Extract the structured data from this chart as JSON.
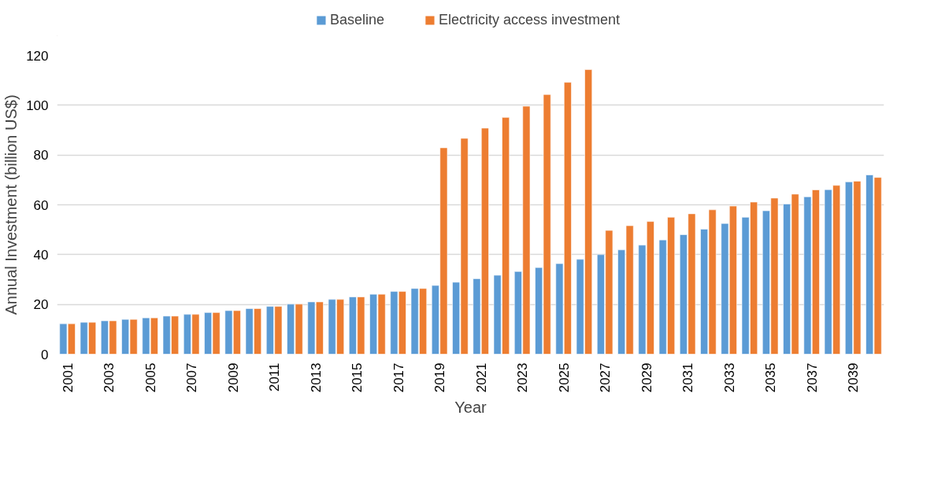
{
  "chart_data": {
    "type": "bar",
    "xlabel": "Year",
    "ylabel": "Annual Investment (billion US$)",
    "categories": [
      "2001",
      null,
      "2003",
      null,
      "2005",
      null,
      "2007",
      null,
      "2009",
      null,
      "2011",
      null,
      "2013",
      null,
      "2015",
      null,
      "2017",
      null,
      "2019",
      null,
      "2021",
      null,
      "2023",
      null,
      "2025",
      null,
      "2027",
      null,
      "2029",
      null,
      "2031",
      null,
      "2033",
      null,
      "2035",
      null,
      "2037",
      null,
      "2039",
      null
    ],
    "series": [
      {
        "name": "Baseline",
        "color": "#5b9bd5",
        "values": [
          12.2,
          12.8,
          13.4,
          14.0,
          14.6,
          15.3,
          16.0,
          16.7,
          17.5,
          18.3,
          19.2,
          20.1,
          21.0,
          22.0,
          23.0,
          24.1,
          25.2,
          26.4,
          27.6,
          28.9,
          30.3,
          31.7,
          33.2,
          34.8,
          36.4,
          38.1,
          40.0,
          41.9,
          43.8,
          45.9,
          48.0,
          50.2,
          52.5,
          55.0,
          57.6,
          60.3,
          63.2,
          66.1,
          69.2,
          72.0
        ]
      },
      {
        "name": "Electricity access investment",
        "color": "#ed7d31",
        "values": [
          12.2,
          12.8,
          13.4,
          14.0,
          14.6,
          15.3,
          16.0,
          16.7,
          17.5,
          18.3,
          19.2,
          20.1,
          21.0,
          22.0,
          23.0,
          24.1,
          25.2,
          26.4,
          82.9,
          86.7,
          90.8,
          95.1,
          99.6,
          104.3,
          109.2,
          114.3,
          49.7,
          51.6,
          53.3,
          55.0,
          56.4,
          58.0,
          59.5,
          61.1,
          62.7,
          64.3,
          66.0,
          67.8,
          69.5,
          71.0
        ]
      }
    ],
    "ylim": [
      0,
      120
    ],
    "yticks": [
      0,
      20,
      40,
      60,
      80,
      100,
      120
    ],
    "grid": "y",
    "legend": "top"
  }
}
